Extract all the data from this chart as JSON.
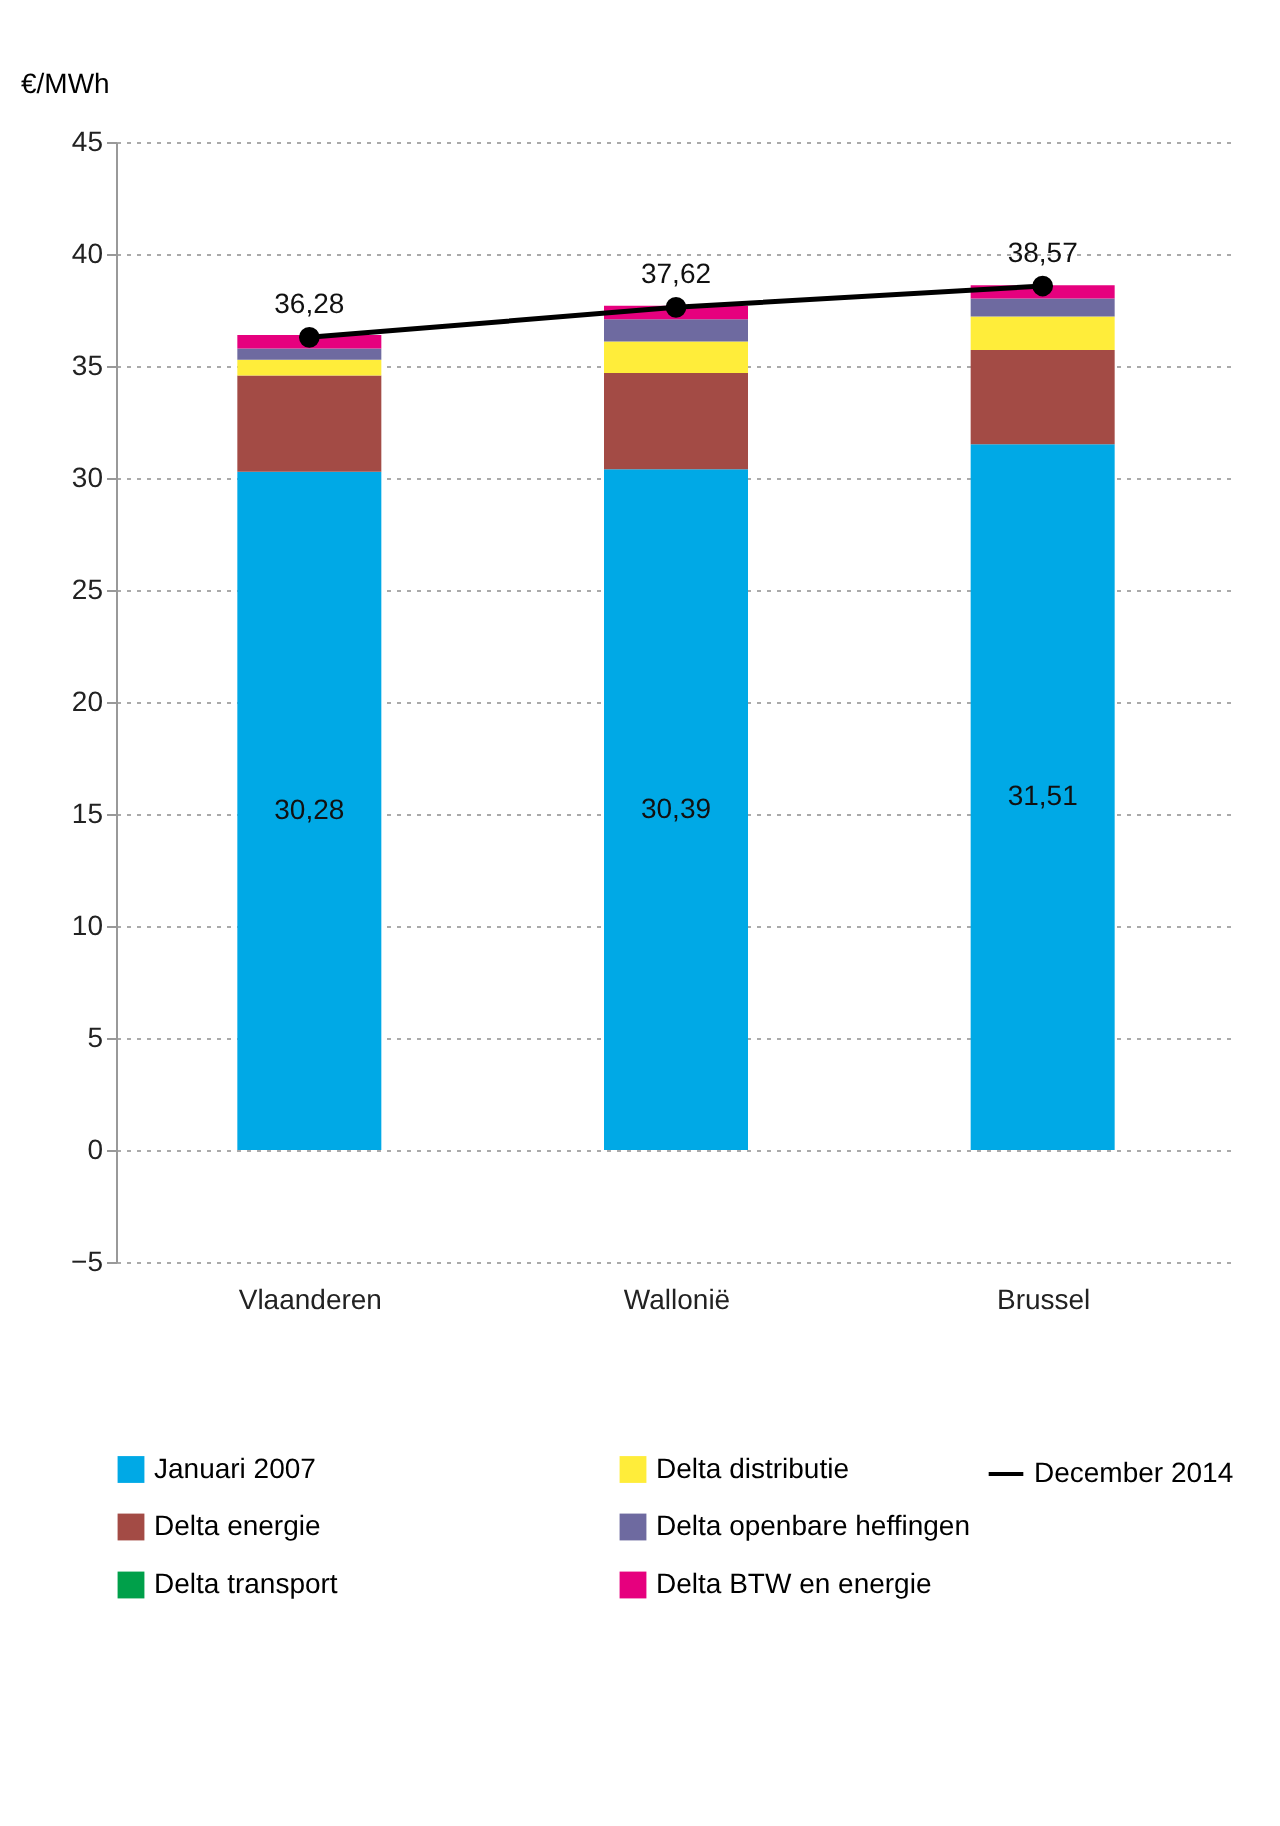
{
  "chart_data": {
    "type": "bar",
    "stacked": true,
    "ylabel": "€/MWh",
    "categories": [
      "Vlaanderen",
      "Wallonië",
      "Brussel"
    ],
    "series": [
      {
        "name": "Januari 2007",
        "color": "#00a9e6",
        "values": [
          30.28,
          30.39,
          31.51
        ],
        "value_labels": [
          "30,28",
          "30,39",
          "31,51"
        ]
      },
      {
        "name": "Delta energie",
        "color": "#a34b45",
        "values": [
          4.3,
          4.3,
          4.2
        ]
      },
      {
        "name": "Delta transport",
        "color": "#00a04a",
        "values": [
          0,
          0,
          0
        ]
      },
      {
        "name": "Delta distributie",
        "color": "#ffed3a",
        "values": [
          0.7,
          1.4,
          1.5
        ]
      },
      {
        "name": "Delta openbare heffingen",
        "color": "#6e6aa0",
        "values": [
          0.5,
          1.0,
          0.8
        ]
      },
      {
        "name": "Delta BTW en energie",
        "color": "#e6007e",
        "values": [
          0.6,
          0.6,
          0.6
        ]
      },
      {
        "name": "December 2014",
        "type": "line",
        "color": "#000000",
        "marker": "circle",
        "line_style": "solid",
        "values": [
          36.28,
          37.62,
          38.57
        ],
        "value_labels": [
          "36,28",
          "37,62",
          "38,57"
        ]
      }
    ],
    "ylim": [
      -5,
      45
    ],
    "yticks": [
      -5,
      0,
      5,
      10,
      15,
      20,
      25,
      30,
      35,
      40,
      45
    ],
    "grid": "y",
    "legend": "bottom"
  }
}
